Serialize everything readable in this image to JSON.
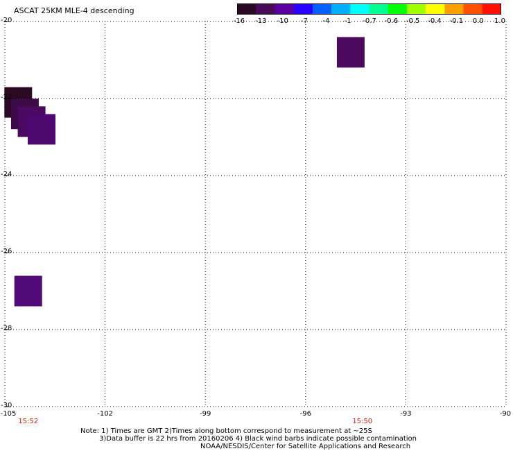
{
  "title": "ASCAT 25KM MLE-4 descending",
  "colorbar": {
    "ticks": [
      "-16",
      "-13",
      "-10",
      "-7",
      "-4",
      "-1",
      "-0.7",
      "-0.6",
      "-0.5",
      "-0.4",
      "-0.1",
      "0.0",
      "1.0"
    ],
    "colors": [
      "#2a0a22",
      "#4a0a5a",
      "#5a00a0",
      "#2a00ff",
      "#0060ff",
      "#00b0ff",
      "#00ffff",
      "#00ff90",
      "#00ff00",
      "#a0ff00",
      "#ffff00",
      "#ffa000",
      "#ff5000",
      "#ff1000"
    ]
  },
  "axes": {
    "lat_labels": [
      "-20",
      "-22",
      "-24",
      "-26",
      "-28",
      "-30"
    ],
    "lon_labels": [
      "-105",
      "-102",
      "-99",
      "-96",
      "-93",
      "-90"
    ],
    "lat_range": [
      -30,
      -20
    ],
    "lon_range": [
      -105,
      -90
    ]
  },
  "times": [
    {
      "label": "15:52",
      "lon": -104.3
    },
    {
      "label": "15:50",
      "lon": -94.3
    }
  ],
  "cells": [
    {
      "lon": -94.65,
      "lat": -20.8,
      "color": "#4b0a5e"
    },
    {
      "lon": -104.6,
      "lat": -22.1,
      "color": "#2c0a24"
    },
    {
      "lon": -104.4,
      "lat": -22.4,
      "color": "#3d0a48"
    },
    {
      "lon": -104.2,
      "lat": -22.6,
      "color": "#4b0a62"
    },
    {
      "lon": -103.9,
      "lat": -22.8,
      "color": "#4f0870"
    },
    {
      "lon": -104.3,
      "lat": -27.0,
      "color": "#520a78"
    }
  ],
  "notes": {
    "line1": "Note: 1) Times are GMT 2)Times along bottom correspond to measurement at ~25S",
    "line2": "3)Data buffer is 22 hrs from 20160206 4) Black wind barbs indicate possible contamination",
    "line3": "NOAA/NESDIS/Center for Satellite Applications and Research"
  }
}
